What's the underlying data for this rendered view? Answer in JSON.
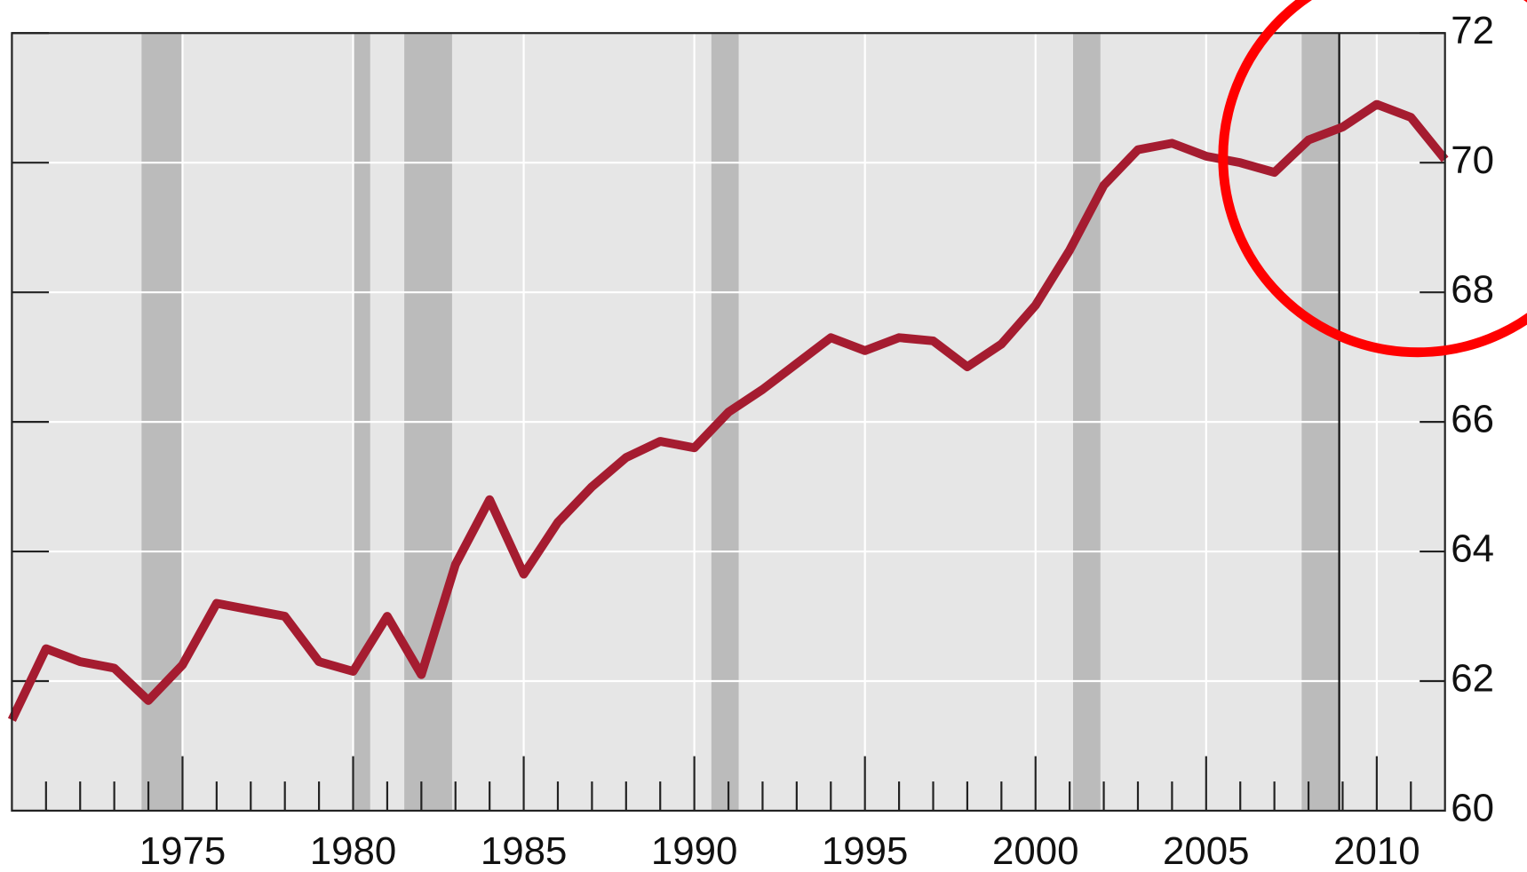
{
  "chart_data": {
    "type": "line",
    "x": [
      1970,
      1971,
      1972,
      1973,
      1974,
      1975,
      1976,
      1977,
      1978,
      1979,
      1980,
      1981,
      1982,
      1983,
      1984,
      1985,
      1986,
      1987,
      1988,
      1989,
      1990,
      1991,
      1992,
      1993,
      1994,
      1995,
      1996,
      1997,
      1998,
      1999,
      2000,
      2001,
      2002,
      2003,
      2004,
      2005,
      2006,
      2007,
      2008,
      2009,
      2010,
      2011,
      2012
    ],
    "series": [
      {
        "color": "#a51c30",
        "values": [
          61.4,
          62.5,
          62.3,
          62.2,
          61.7,
          62.25,
          63.2,
          63.1,
          63.0,
          62.3,
          62.15,
          63.0,
          62.1,
          63.8,
          64.8,
          63.65,
          64.45,
          65.0,
          65.45,
          65.7,
          65.6,
          66.15,
          66.5,
          66.9,
          67.3,
          67.1,
          67.3,
          67.25,
          66.85,
          67.2,
          67.8,
          68.65,
          69.65,
          70.2,
          70.3,
          70.1,
          70.0,
          69.85,
          70.35,
          70.55,
          70.9,
          70.7,
          70.05
        ]
      }
    ],
    "xlim": [
      1970,
      2012
    ],
    "xticks": [
      1975,
      1980,
      1985,
      1990,
      1995,
      2000,
      2005,
      2010
    ],
    "xminorticks": [
      1971,
      1972,
      1973,
      1974,
      1976,
      1977,
      1978,
      1979,
      1981,
      1982,
      1983,
      1984,
      1986,
      1987,
      1988,
      1989,
      1991,
      1992,
      1993,
      1994,
      1996,
      1997,
      1998,
      1999,
      2001,
      2002,
      2003,
      2004,
      2006,
      2007,
      2008,
      2009,
      2011
    ],
    "ylim": [
      60,
      72
    ],
    "yticks": [
      60,
      62,
      64,
      66,
      68,
      70,
      72
    ],
    "shaded_ranges": [
      [
        1973.8,
        1975.0
      ],
      [
        1980.0,
        1980.5
      ],
      [
        1981.5,
        1982.9
      ],
      [
        1990.5,
        1991.3
      ],
      [
        2001.1,
        2001.9
      ],
      [
        2007.8,
        2008.9
      ]
    ],
    "vline": 2008.9,
    "grid": true
  }
}
